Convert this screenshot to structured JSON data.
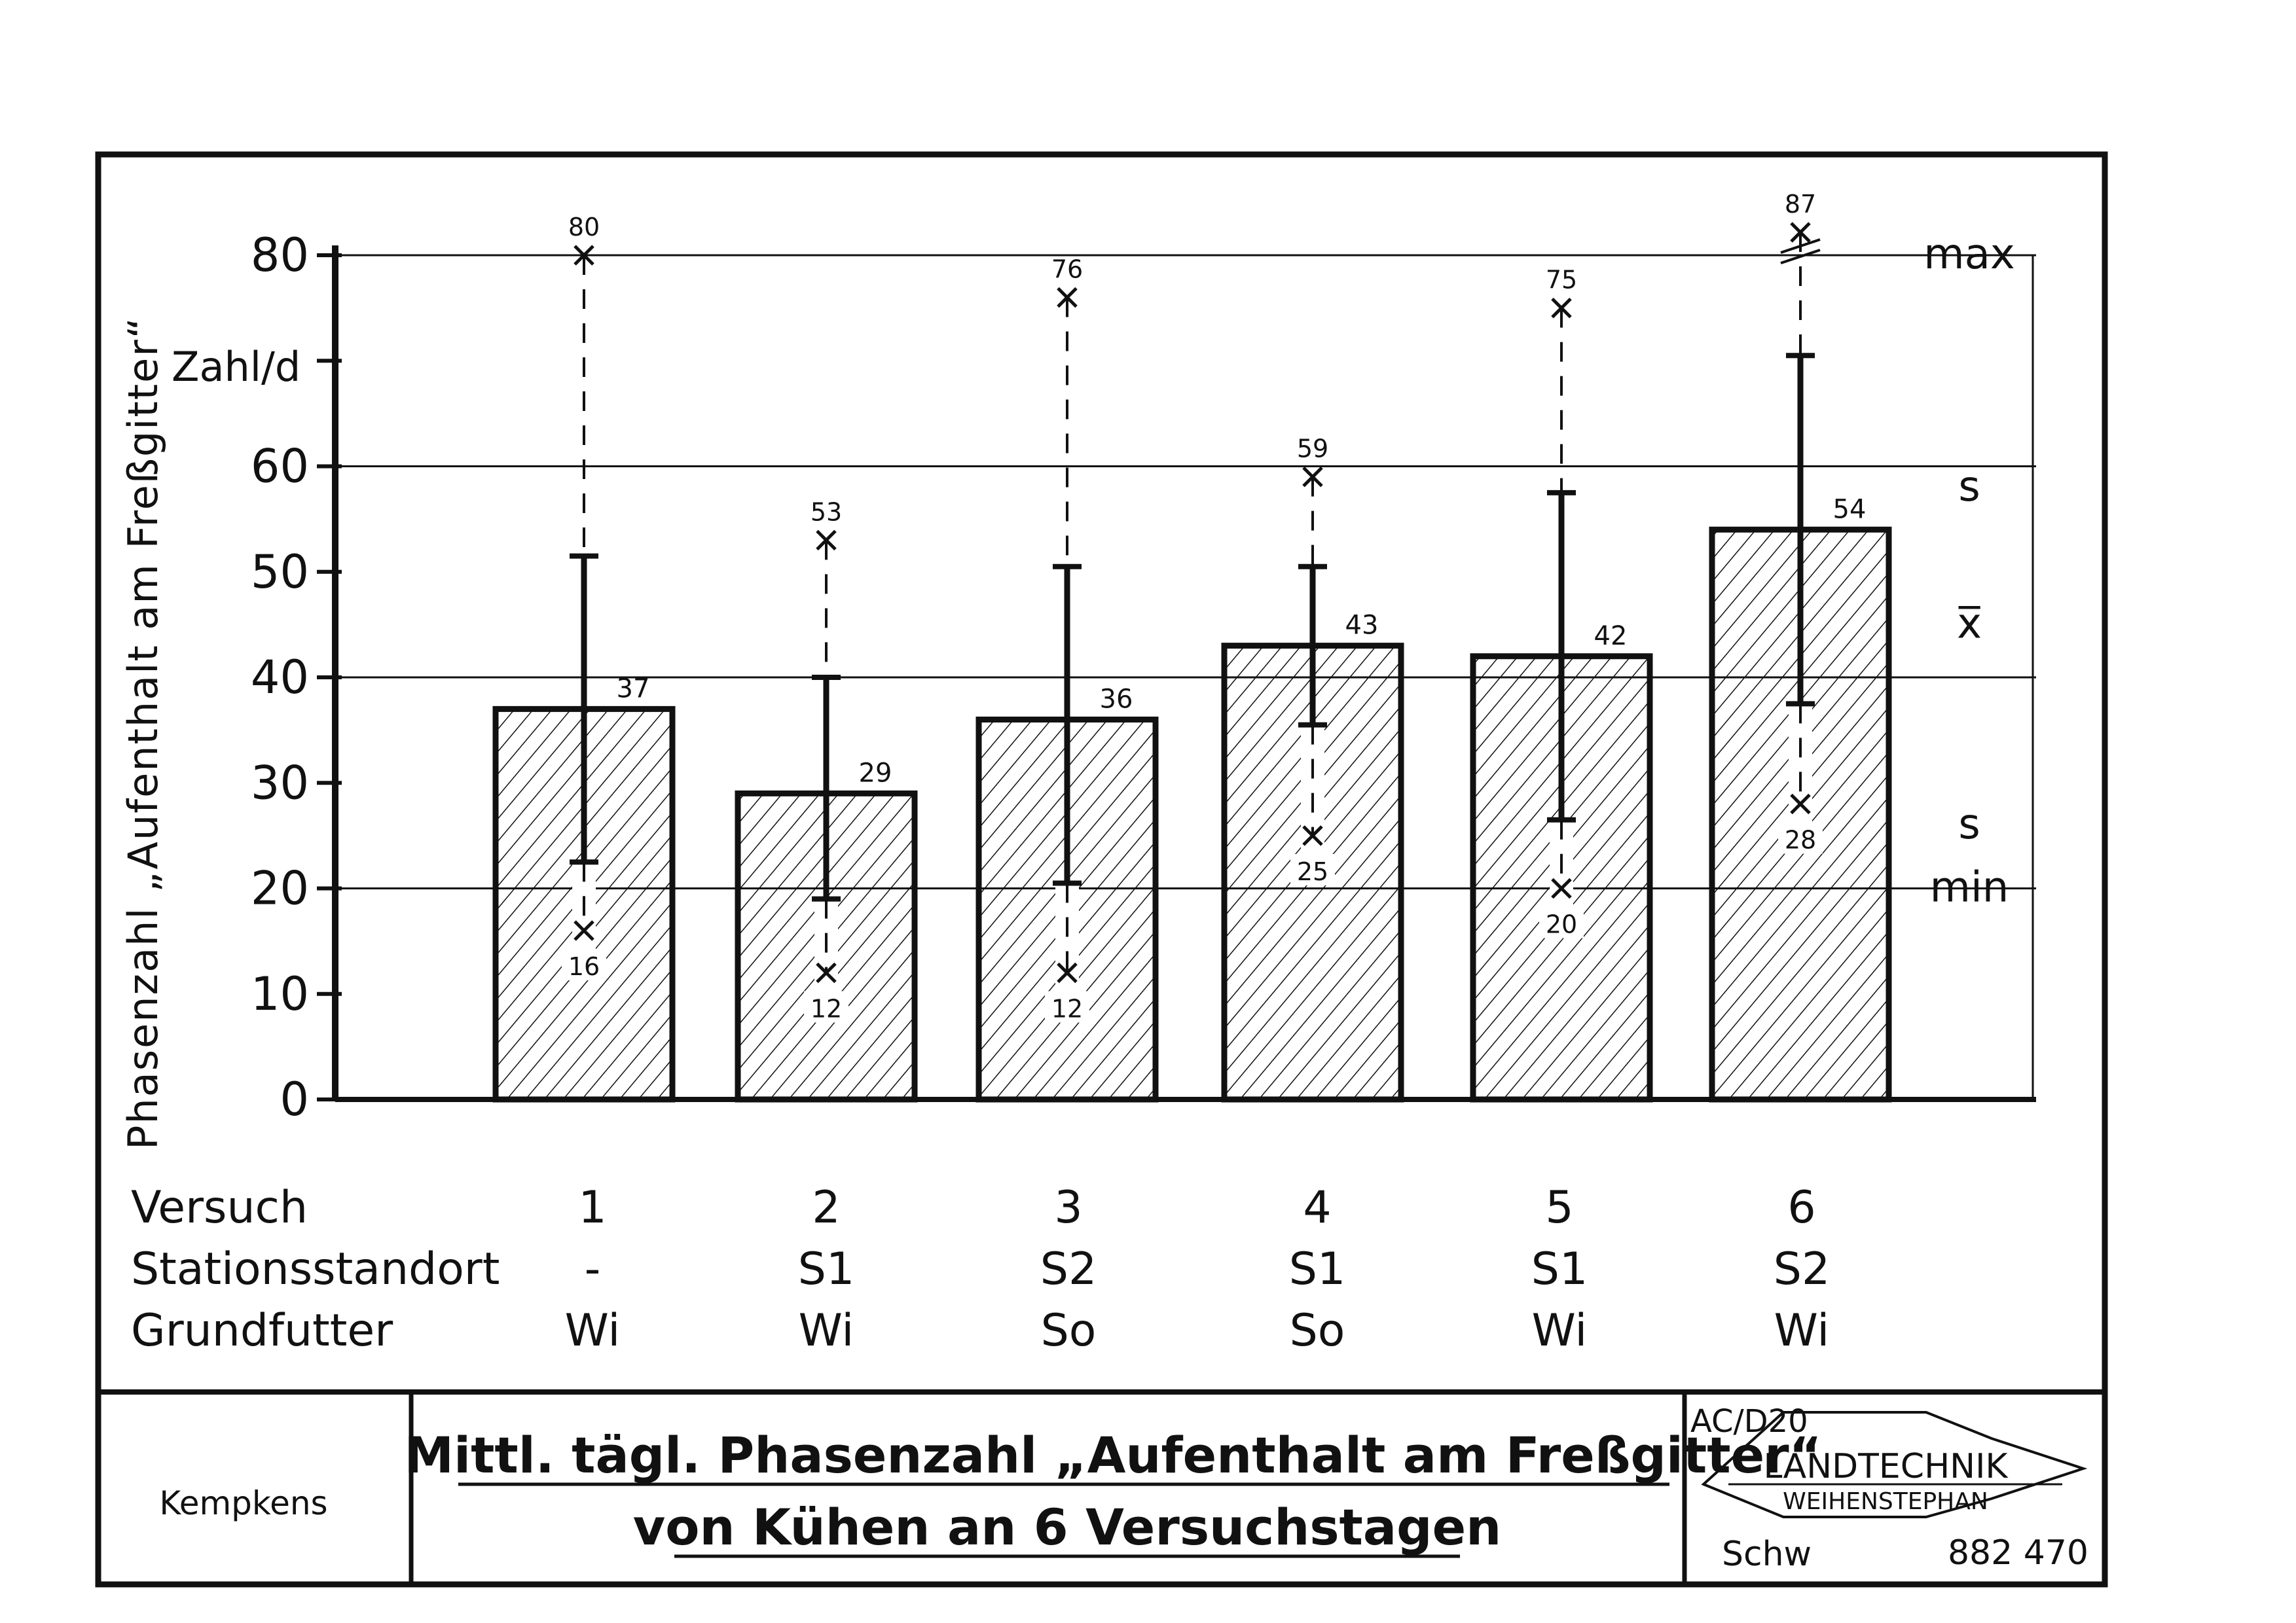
{
  "chart_data": {
    "type": "bar",
    "ylabel": "Phasenzahl „Aufenthalt am Freßgitter“",
    "yunit": "Zahl/d",
    "ylim": [
      0,
      80
    ],
    "yticks": [
      0,
      10,
      20,
      30,
      40,
      50,
      60,
      70,
      80
    ],
    "ytick_labels": [
      "0",
      "10",
      "20",
      "30",
      "40",
      "50",
      "60",
      "",
      "80"
    ],
    "gridlines": [
      20,
      40,
      60,
      80
    ],
    "categories": [
      "1",
      "2",
      "3",
      "4",
      "5",
      "6"
    ],
    "means": [
      37,
      29,
      36,
      43,
      42,
      54
    ],
    "mean_labels": [
      "37",
      "29",
      "36",
      "43",
      "42",
      "54"
    ],
    "sd_upper": [
      51.5,
      40,
      50.5,
      50.5,
      57.5,
      70.5
    ],
    "sd_lower": [
      22.5,
      19,
      20.5,
      35.5,
      26.5,
      37.5
    ],
    "max": [
      80,
      53,
      76,
      59,
      75,
      87
    ],
    "max_labels": [
      "80",
      "53",
      "76",
      "59",
      "75",
      "87"
    ],
    "min": [
      16,
      12,
      12,
      25,
      20,
      28
    ],
    "min_labels": [
      "16",
      "12",
      "12",
      "25",
      "20",
      "28"
    ],
    "axis_break_category": "6",
    "legend": {
      "position": "right",
      "entries": [
        {
          "label": "max",
          "value": 80
        },
        {
          "label": "s",
          "value": 58
        },
        {
          "label": "x̅",
          "value": 45
        },
        {
          "label": "s",
          "value": 26
        },
        {
          "label": "min",
          "value": 20
        }
      ]
    }
  },
  "table": {
    "row_labels": [
      "Versuch",
      "Stationsstandort",
      "Grundfutter"
    ],
    "columns": [
      {
        "versuch": "1",
        "station": "-",
        "futter": "Wi"
      },
      {
        "versuch": "2",
        "station": "S1",
        "futter": "Wi"
      },
      {
        "versuch": "3",
        "station": "S2",
        "futter": "So"
      },
      {
        "versuch": "4",
        "station": "S1",
        "futter": "So"
      },
      {
        "versuch": "5",
        "station": "S1",
        "futter": "Wi"
      },
      {
        "versuch": "6",
        "station": "S2",
        "futter": "Wi"
      }
    ]
  },
  "footer": {
    "author": "Kempkens",
    "title_line1": "Mittl. tägl. Phasenzahl „Aufenthalt am Freßgitter“",
    "title_line2": "von Kühen an 6 Versuchstagen",
    "code": "AC/D20",
    "logo_line1": "LANDTECHNIK",
    "logo_line2": "WEIHENSTEPHAN",
    "drawer": "Schw",
    "number": "882 470"
  },
  "colors": {
    "ink": "#111111",
    "paper": "#ffffff"
  }
}
